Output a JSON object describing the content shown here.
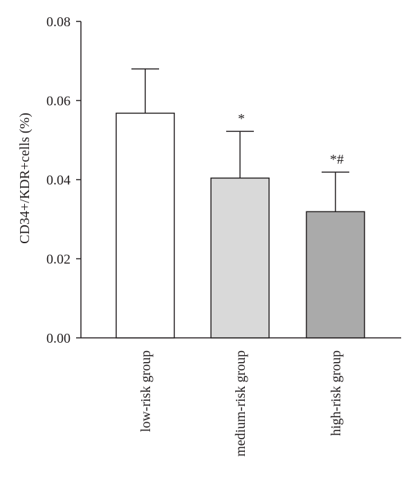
{
  "chart_data": {
    "type": "bar",
    "ylabel": "CD34+/KDR+cells (%)",
    "xlabel": "",
    "ylim": [
      0,
      0.08
    ],
    "yticks": [
      "0.00",
      "0.02",
      "0.04",
      "0.06",
      "0.08"
    ],
    "categories": [
      "low-risk group",
      "medium-risk group",
      "high-risk group"
    ],
    "values": [
      0.0568,
      0.0404,
      0.0319
    ],
    "error_upper": [
      0.0112,
      0.0118,
      0.01
    ],
    "annotations": [
      "",
      "*",
      "*#"
    ],
    "bar_colors": [
      "#ffffff",
      "#d9d9d9",
      "#aaaaaa"
    ],
    "grid": false
  }
}
